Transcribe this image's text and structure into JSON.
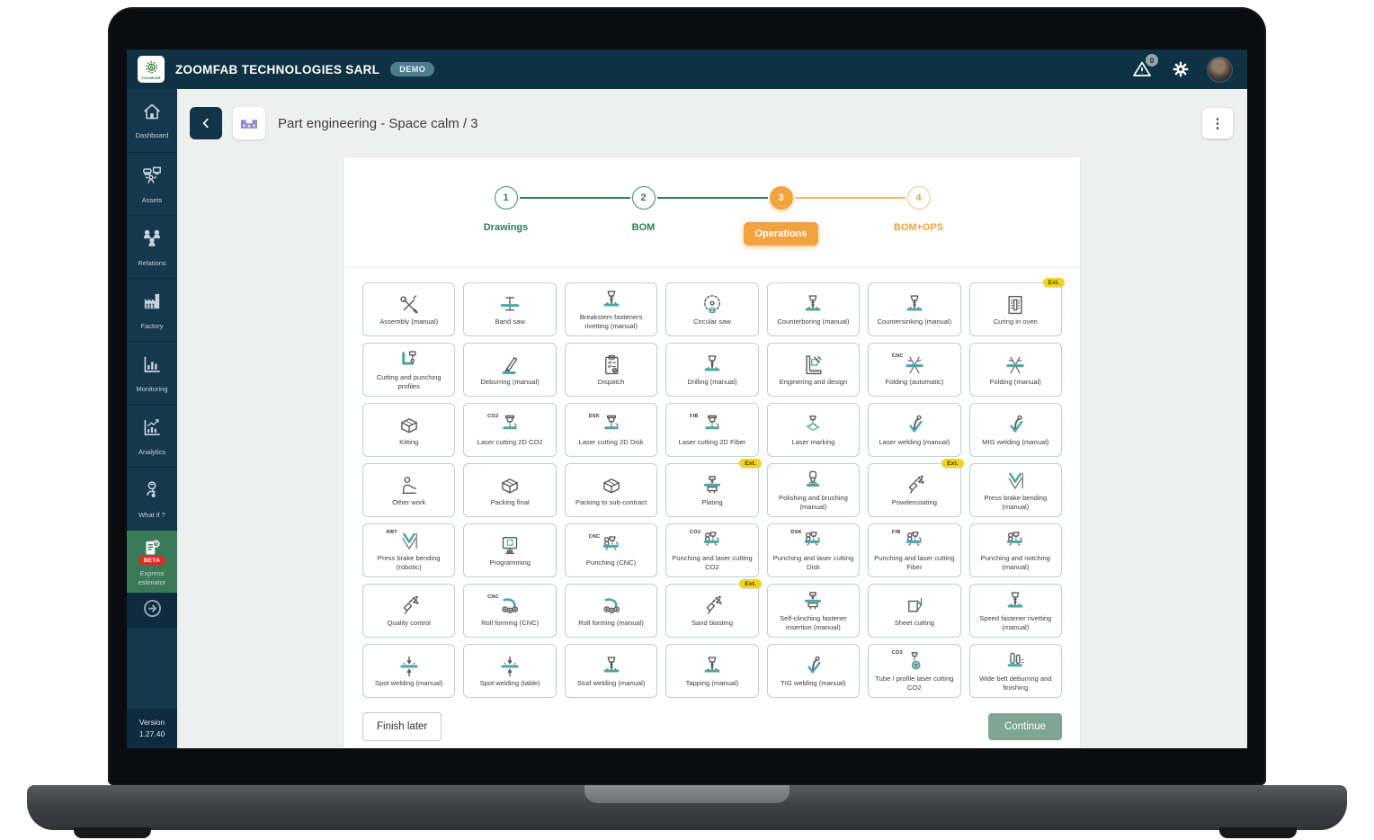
{
  "topbar": {
    "company": "ZOOMFAB TECHNOLOGIES SARL",
    "badge": "DEMO",
    "logo_text": "ZOOMFAB",
    "alert_count": "0"
  },
  "sidebar": {
    "items": [
      {
        "id": "dashboard",
        "label": "Dashboard",
        "icon": "home"
      },
      {
        "id": "assets",
        "label": "Assets",
        "icon": "assets"
      },
      {
        "id": "relations",
        "label": "Relations",
        "icon": "relations"
      },
      {
        "id": "factory",
        "label": "Factory",
        "icon": "factory"
      },
      {
        "id": "monitoring",
        "label": "Monitoring",
        "icon": "monitoring"
      },
      {
        "id": "analytics",
        "label": "Analytics",
        "icon": "analytics"
      },
      {
        "id": "whatif",
        "label": "What if ?",
        "icon": "whatif"
      },
      {
        "id": "express",
        "label": "Express estimator",
        "icon": "express",
        "beta": "BETA",
        "bg": "green"
      },
      {
        "id": "expand",
        "label": "",
        "icon": "arrow",
        "compact": true
      }
    ],
    "version_label": "Version",
    "version": "1.27.40"
  },
  "header": {
    "title": "Part engineering - Space calm / 3",
    "menu_icon": "⋮"
  },
  "stepper": {
    "steps": [
      {
        "num": "1",
        "label": "Drawings",
        "state": "done"
      },
      {
        "num": "2",
        "label": "BOM",
        "state": "done"
      },
      {
        "num": "3",
        "label": "Operations",
        "state": "active"
      },
      {
        "num": "4",
        "label": "BOM+OPS",
        "state": "upcoming"
      }
    ]
  },
  "operations": {
    "items": [
      {
        "label": "Assembly (manual)",
        "icon": "tools"
      },
      {
        "label": "Band saw",
        "icon": "beam"
      },
      {
        "label": "Breakstem fasteners rivetting (manual)",
        "icon": "drill"
      },
      {
        "label": "Circular saw",
        "icon": "circsaw"
      },
      {
        "label": "Counterboring (manual)",
        "icon": "drill"
      },
      {
        "label": "Countersinking (manual)",
        "icon": "drill"
      },
      {
        "label": "Curing in oven",
        "icon": "oven",
        "badge": "Ext."
      },
      {
        "label": "Cutting and punching profiles",
        "icon": "punchprofile"
      },
      {
        "label": "Deburring (manual)",
        "icon": "pen"
      },
      {
        "label": "Dispatch",
        "icon": "clipboard"
      },
      {
        "label": "Drilling (manual)",
        "icon": "drill"
      },
      {
        "label": "Enginering and design",
        "icon": "ruler"
      },
      {
        "label": "Folding (automatic)",
        "icon": "fold",
        "tag": "CNC"
      },
      {
        "label": "Folding (manual)",
        "icon": "fold"
      },
      {
        "label": "Kitting",
        "icon": "box"
      },
      {
        "label": "Laser cutting 2D CO2",
        "icon": "laser",
        "tag": "CO2"
      },
      {
        "label": "Laser cutting 2D Disk",
        "icon": "laser",
        "tag": "DSK"
      },
      {
        "label": "Laser cutting 2D Fiber",
        "icon": "laser",
        "tag": "FIB"
      },
      {
        "label": "Laser marking",
        "icon": "lasermark"
      },
      {
        "label": "Laser welding (manual)",
        "icon": "torch"
      },
      {
        "label": "MIG welding (manual)",
        "icon": "torch"
      },
      {
        "label": "Other work",
        "icon": "person"
      },
      {
        "label": "Packing final",
        "icon": "box"
      },
      {
        "label": "Packing to sub-contract",
        "icon": "box"
      },
      {
        "label": "Plating",
        "icon": "press",
        "badge": "Ext."
      },
      {
        "label": "Polishing and brushing (manual)",
        "icon": "polisher"
      },
      {
        "label": "Powdercoating",
        "icon": "spray",
        "badge": "Ext."
      },
      {
        "label": "Press brake bending (manual)",
        "icon": "vbend"
      },
      {
        "label": "Press brake bending (robotic)",
        "icon": "vbend",
        "tag": "RBT"
      },
      {
        "label": "Programming",
        "icon": "monitor"
      },
      {
        "label": "Punching (CNC)",
        "icon": "punch",
        "tag": "CNC"
      },
      {
        "label": "Punching and laser cutting CO2",
        "icon": "punch",
        "tag": "CO2"
      },
      {
        "label": "Punching and laser cutting Disk",
        "icon": "punch",
        "tag": "DSK"
      },
      {
        "label": "Punching and laser cutting Fiber",
        "icon": "punch",
        "tag": "FIB"
      },
      {
        "label": "Punching and notching (manual)",
        "icon": "punch"
      },
      {
        "label": "Quality control",
        "icon": "spray"
      },
      {
        "label": "Roll forming (CNC)",
        "icon": "rolls",
        "tag": "CNC"
      },
      {
        "label": "Roll forming (manual)",
        "icon": "rolls"
      },
      {
        "label": "Sand blasting",
        "icon": "spray",
        "badge": "Ext."
      },
      {
        "label": "Self-clinching fastener insertion (manual)",
        "icon": "press"
      },
      {
        "label": "Sheet cutting",
        "icon": "sheet"
      },
      {
        "label": "Speed fastener rivetting (manual)",
        "icon": "drill"
      },
      {
        "label": "Spot welding (manual)",
        "icon": "spot"
      },
      {
        "label": "Spot welding (table)",
        "icon": "spot"
      },
      {
        "label": "Stud welding (manual)",
        "icon": "drill"
      },
      {
        "label": "Tapping (manual)",
        "icon": "drill"
      },
      {
        "label": "TIG welding (manual)",
        "icon": "torch"
      },
      {
        "label": "Tube / profile laser cutting CO2",
        "icon": "tube",
        "tag": "CO2"
      },
      {
        "label": "Wide belt deburring and finishing",
        "icon": "belt"
      }
    ]
  },
  "footer": {
    "finish_label": "Finish later",
    "continue_label": "Continue"
  },
  "colors": {
    "topbar_navy": "#0e3143",
    "sidebar_navy": "#16384f",
    "express_green": "#3b7a57",
    "beta_red": "#dd2b20",
    "stepper_green": "#2e7d54",
    "stepper_orange": "#f0a33f",
    "card_border_teal": "#b9d3cf",
    "icon_teal": "#4ba7a1",
    "ext_yellow": "#f0d41f",
    "continue_green": "#7fa694",
    "part_icon_purple": "#a08ad0"
  }
}
